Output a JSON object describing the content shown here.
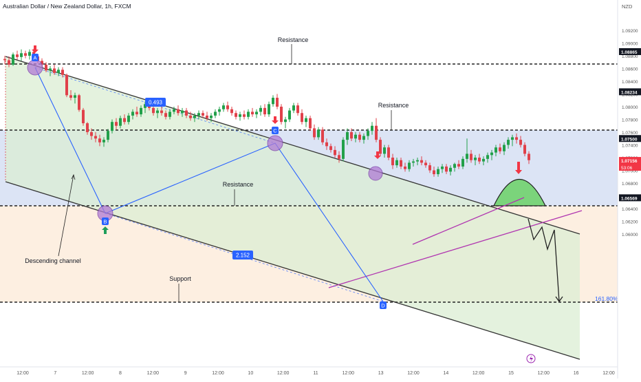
{
  "header": {
    "title": "Australian Dollar / New Zealand Dollar, 1h, FXCM",
    "currency": "NZD"
  },
  "colors": {
    "up": "#22a04a",
    "down": "#e0414a",
    "resistance_zone": "#d6dff3",
    "channel_fill": "#e7f1e2",
    "support_zone": "#fdebd9",
    "blue": "#2962ff",
    "purple_line": "#b035b0",
    "marker_circle": "#b07ad4",
    "green_dome": "#66cc66",
    "arrow_red": "#f23645",
    "arrow_green": "#1e9e5a"
  },
  "chart_data": {
    "type": "candlestick",
    "title": "Australian Dollar / New Zealand Dollar, 1h, FXCM",
    "ylim": [
      1.0597,
      1.095
    ],
    "y_ticks": [
      "1.09200",
      "1.09000",
      "1.08800",
      "1.08600",
      "1.08400",
      "1.08200",
      "1.08000",
      "1.07800",
      "1.07600",
      "1.07400",
      "1.07200",
      "1.07000",
      "1.06800",
      "1.06600",
      "1.06400",
      "1.06200",
      "1.06000"
    ],
    "x_ticks": [
      "12:00",
      "7",
      "12:00",
      "8",
      "12:00",
      "9",
      "12:00",
      "10",
      "12:00",
      "11",
      "12:00",
      "13",
      "12:00",
      "14",
      "12:00",
      "15",
      "12:00",
      "16",
      "12:00"
    ],
    "price_labels": [
      {
        "value": "1.08865",
        "style": "dark"
      },
      {
        "value": "1.08234",
        "style": "dark"
      },
      {
        "value": "1.07500",
        "style": "dark"
      },
      {
        "value": "1.07156",
        "sub": "53:06",
        "style": "red"
      },
      {
        "value": "1.06569",
        "style": "dark"
      }
    ],
    "levels": [
      {
        "name": "Resistance",
        "value": 1.08865
      },
      {
        "name": "Resistance",
        "value": 1.08234
      },
      {
        "name": "Resistance",
        "value": 1.075
      },
      {
        "name": "Support",
        "value": 1.06569
      }
    ],
    "annotations": {
      "resistance_top": "Resistance",
      "resistance_mid": "Resistance",
      "resistance_low": "Resistance",
      "support": "Support",
      "channel": "Descending channel",
      "ratio_1": "0.493",
      "ratio_2": "2.152",
      "fib": "161.80%",
      "point_a": "A",
      "point_b": "B",
      "point_c": "C",
      "point_d": "D"
    },
    "candles": [
      {
        "x": 7,
        "o": 1.0875,
        "h": 1.088,
        "l": 1.0867,
        "c": 1.0873
      },
      {
        "x": 13,
        "o": 1.0873,
        "h": 1.0879,
        "l": 1.0862,
        "c": 1.0866
      },
      {
        "x": 19,
        "o": 1.0866,
        "h": 1.0885,
        "l": 1.0864,
        "c": 1.0882
      },
      {
        "x": 25,
        "o": 1.0882,
        "h": 1.0888,
        "l": 1.0874,
        "c": 1.0878
      },
      {
        "x": 31,
        "o": 1.0878,
        "h": 1.089,
        "l": 1.0872,
        "c": 1.0884
      },
      {
        "x": 37,
        "o": 1.0884,
        "h": 1.0888,
        "l": 1.0876,
        "c": 1.088
      },
      {
        "x": 43,
        "o": 1.088,
        "h": 1.089,
        "l": 1.0874,
        "c": 1.0886
      },
      {
        "x": 49,
        "o": 1.0886,
        "h": 1.0891,
        "l": 1.0876,
        "c": 1.0879
      },
      {
        "x": 55,
        "o": 1.0879,
        "h": 1.0883,
        "l": 1.0868,
        "c": 1.0872
      },
      {
        "x": 61,
        "o": 1.0872,
        "h": 1.0876,
        "l": 1.0862,
        "c": 1.0866
      },
      {
        "x": 67,
        "o": 1.0866,
        "h": 1.087,
        "l": 1.0854,
        "c": 1.0857
      },
      {
        "x": 73,
        "o": 1.0857,
        "h": 1.0864,
        "l": 1.0848,
        "c": 1.086
      },
      {
        "x": 79,
        "o": 1.086,
        "h": 1.0866,
        "l": 1.085,
        "c": 1.0853
      },
      {
        "x": 85,
        "o": 1.0853,
        "h": 1.0862,
        "l": 1.0848,
        "c": 1.0858
      },
      {
        "x": 91,
        "o": 1.0858,
        "h": 1.0862,
        "l": 1.0846,
        "c": 1.085
      },
      {
        "x": 97,
        "o": 1.085,
        "h": 1.0852,
        "l": 1.0815,
        "c": 1.0818
      },
      {
        "x": 103,
        "o": 1.0818,
        "h": 1.0826,
        "l": 1.081,
        "c": 1.0814
      },
      {
        "x": 109,
        "o": 1.0814,
        "h": 1.0822,
        "l": 1.0805,
        "c": 1.0818
      },
      {
        "x": 115,
        "o": 1.0818,
        "h": 1.082,
        "l": 1.0792,
        "c": 1.0795
      },
      {
        "x": 121,
        "o": 1.0795,
        "h": 1.0798,
        "l": 1.077,
        "c": 1.0774
      },
      {
        "x": 127,
        "o": 1.0774,
        "h": 1.0776,
        "l": 1.0756,
        "c": 1.076
      },
      {
        "x": 133,
        "o": 1.076,
        "h": 1.0766,
        "l": 1.0748,
        "c": 1.0754
      },
      {
        "x": 139,
        "o": 1.0754,
        "h": 1.076,
        "l": 1.0744,
        "c": 1.075
      },
      {
        "x": 145,
        "o": 1.075,
        "h": 1.0756,
        "l": 1.0738,
        "c": 1.0744
      },
      {
        "x": 151,
        "o": 1.0744,
        "h": 1.0752,
        "l": 1.0737,
        "c": 1.0748
      },
      {
        "x": 157,
        "o": 1.0748,
        "h": 1.0765,
        "l": 1.0744,
        "c": 1.0762
      },
      {
        "x": 163,
        "o": 1.0762,
        "h": 1.078,
        "l": 1.0758,
        "c": 1.0776
      },
      {
        "x": 169,
        "o": 1.0776,
        "h": 1.0782,
        "l": 1.0764,
        "c": 1.077
      },
      {
        "x": 175,
        "o": 1.077,
        "h": 1.0786,
        "l": 1.0766,
        "c": 1.0782
      },
      {
        "x": 181,
        "o": 1.0782,
        "h": 1.0788,
        "l": 1.0772,
        "c": 1.0776
      },
      {
        "x": 187,
        "o": 1.0776,
        "h": 1.079,
        "l": 1.0772,
        "c": 1.0786
      },
      {
        "x": 193,
        "o": 1.0786,
        "h": 1.0796,
        "l": 1.078,
        "c": 1.0792
      },
      {
        "x": 199,
        "o": 1.0792,
        "h": 1.08,
        "l": 1.0784,
        "c": 1.0788
      },
      {
        "x": 205,
        "o": 1.0788,
        "h": 1.0802,
        "l": 1.0784,
        "c": 1.0798
      },
      {
        "x": 211,
        "o": 1.0798,
        "h": 1.0808,
        "l": 1.079,
        "c": 1.0804
      },
      {
        "x": 217,
        "o": 1.0804,
        "h": 1.081,
        "l": 1.0794,
        "c": 1.0798
      },
      {
        "x": 223,
        "o": 1.0798,
        "h": 1.0802,
        "l": 1.0786,
        "c": 1.079
      },
      {
        "x": 229,
        "o": 1.079,
        "h": 1.0798,
        "l": 1.0782,
        "c": 1.0794
      },
      {
        "x": 235,
        "o": 1.0794,
        "h": 1.08,
        "l": 1.0786,
        "c": 1.079
      },
      {
        "x": 241,
        "o": 1.079,
        "h": 1.0794,
        "l": 1.078,
        "c": 1.0784
      },
      {
        "x": 247,
        "o": 1.0784,
        "h": 1.0796,
        "l": 1.078,
        "c": 1.0792
      },
      {
        "x": 253,
        "o": 1.0792,
        "h": 1.08,
        "l": 1.0788,
        "c": 1.0796
      },
      {
        "x": 259,
        "o": 1.0796,
        "h": 1.0802,
        "l": 1.0786,
        "c": 1.079
      },
      {
        "x": 265,
        "o": 1.079,
        "h": 1.0798,
        "l": 1.0784,
        "c": 1.0794
      },
      {
        "x": 271,
        "o": 1.0794,
        "h": 1.0798,
        "l": 1.0782,
        "c": 1.0786
      },
      {
        "x": 277,
        "o": 1.0786,
        "h": 1.0792,
        "l": 1.0778,
        "c": 1.0782
      },
      {
        "x": 283,
        "o": 1.0782,
        "h": 1.079,
        "l": 1.0776,
        "c": 1.0786
      },
      {
        "x": 289,
        "o": 1.0786,
        "h": 1.0794,
        "l": 1.078,
        "c": 1.079
      },
      {
        "x": 295,
        "o": 1.079,
        "h": 1.0794,
        "l": 1.0782,
        "c": 1.0786
      },
      {
        "x": 301,
        "o": 1.0786,
        "h": 1.0792,
        "l": 1.0778,
        "c": 1.0782
      },
      {
        "x": 307,
        "o": 1.0782,
        "h": 1.079,
        "l": 1.0776,
        "c": 1.0786
      },
      {
        "x": 313,
        "o": 1.0786,
        "h": 1.0796,
        "l": 1.0782,
        "c": 1.0792
      },
      {
        "x": 319,
        "o": 1.0792,
        "h": 1.08,
        "l": 1.0786,
        "c": 1.0796
      },
      {
        "x": 325,
        "o": 1.0796,
        "h": 1.0806,
        "l": 1.0792,
        "c": 1.0802
      },
      {
        "x": 331,
        "o": 1.0802,
        "h": 1.0808,
        "l": 1.0792,
        "c": 1.0796
      },
      {
        "x": 337,
        "o": 1.0796,
        "h": 1.08,
        "l": 1.0786,
        "c": 1.079
      },
      {
        "x": 343,
        "o": 1.079,
        "h": 1.0794,
        "l": 1.078,
        "c": 1.0784
      },
      {
        "x": 349,
        "o": 1.0784,
        "h": 1.0792,
        "l": 1.0778,
        "c": 1.0788
      },
      {
        "x": 355,
        "o": 1.0788,
        "h": 1.0794,
        "l": 1.078,
        "c": 1.0784
      },
      {
        "x": 361,
        "o": 1.0784,
        "h": 1.0796,
        "l": 1.078,
        "c": 1.0792
      },
      {
        "x": 367,
        "o": 1.0792,
        "h": 1.0798,
        "l": 1.0784,
        "c": 1.0788
      },
      {
        "x": 373,
        "o": 1.0788,
        "h": 1.0796,
        "l": 1.0782,
        "c": 1.0792
      },
      {
        "x": 379,
        "o": 1.0792,
        "h": 1.0802,
        "l": 1.0786,
        "c": 1.0798
      },
      {
        "x": 385,
        "o": 1.0798,
        "h": 1.0804,
        "l": 1.0784,
        "c": 1.0788
      },
      {
        "x": 391,
        "o": 1.0788,
        "h": 1.0808,
        "l": 1.0784,
        "c": 1.0804
      },
      {
        "x": 397,
        "o": 1.0804,
        "h": 1.0818,
        "l": 1.08,
        "c": 1.0814
      },
      {
        "x": 403,
        "o": 1.0814,
        "h": 1.082,
        "l": 1.0796,
        "c": 1.08
      },
      {
        "x": 409,
        "o": 1.08,
        "h": 1.0804,
        "l": 1.0772,
        "c": 1.0776
      },
      {
        "x": 415,
        "o": 1.0776,
        "h": 1.0784,
        "l": 1.0766,
        "c": 1.078
      },
      {
        "x": 421,
        "o": 1.078,
        "h": 1.0798,
        "l": 1.0776,
        "c": 1.0794
      },
      {
        "x": 427,
        "o": 1.0794,
        "h": 1.0806,
        "l": 1.079,
        "c": 1.0802
      },
      {
        "x": 433,
        "o": 1.0802,
        "h": 1.0806,
        "l": 1.0786,
        "c": 1.079
      },
      {
        "x": 439,
        "o": 1.079,
        "h": 1.0796,
        "l": 1.0772,
        "c": 1.0776
      },
      {
        "x": 445,
        "o": 1.0776,
        "h": 1.0786,
        "l": 1.0768,
        "c": 1.0782
      },
      {
        "x": 451,
        "o": 1.0782,
        "h": 1.0786,
        "l": 1.0762,
        "c": 1.0766
      },
      {
        "x": 457,
        "o": 1.0766,
        "h": 1.0772,
        "l": 1.0748,
        "c": 1.0752
      },
      {
        "x": 463,
        "o": 1.0752,
        "h": 1.0768,
        "l": 1.0748,
        "c": 1.0764
      },
      {
        "x": 469,
        "o": 1.0764,
        "h": 1.0768,
        "l": 1.074,
        "c": 1.0744
      },
      {
        "x": 475,
        "o": 1.0744,
        "h": 1.075,
        "l": 1.0732,
        "c": 1.0738
      },
      {
        "x": 481,
        "o": 1.0738,
        "h": 1.0742,
        "l": 1.0728,
        "c": 1.0732
      },
      {
        "x": 487,
        "o": 1.0732,
        "h": 1.0738,
        "l": 1.072,
        "c": 1.0724
      },
      {
        "x": 493,
        "o": 1.0724,
        "h": 1.073,
        "l": 1.0712,
        "c": 1.0718
      },
      {
        "x": 499,
        "o": 1.0718,
        "h": 1.0752,
        "l": 1.0714,
        "c": 1.0748
      },
      {
        "x": 505,
        "o": 1.0748,
        "h": 1.0766,
        "l": 1.074,
        "c": 1.076
      },
      {
        "x": 511,
        "o": 1.076,
        "h": 1.0766,
        "l": 1.0746,
        "c": 1.075
      },
      {
        "x": 517,
        "o": 1.075,
        "h": 1.076,
        "l": 1.0744,
        "c": 1.0756
      },
      {
        "x": 523,
        "o": 1.0756,
        "h": 1.076,
        "l": 1.0744,
        "c": 1.0748
      },
      {
        "x": 529,
        "o": 1.0748,
        "h": 1.0758,
        "l": 1.0742,
        "c": 1.0754
      },
      {
        "x": 535,
        "o": 1.0754,
        "h": 1.0766,
        "l": 1.0748,
        "c": 1.0762
      },
      {
        "x": 541,
        "o": 1.0762,
        "h": 1.0776,
        "l": 1.0756,
        "c": 1.077
      },
      {
        "x": 547,
        "o": 1.077,
        "h": 1.0782,
        "l": 1.0744,
        "c": 1.0748
      },
      {
        "x": 553,
        "o": 1.0748,
        "h": 1.0752,
        "l": 1.0722,
        "c": 1.0726
      },
      {
        "x": 559,
        "o": 1.0726,
        "h": 1.074,
        "l": 1.072,
        "c": 1.0736
      },
      {
        "x": 565,
        "o": 1.0736,
        "h": 1.074,
        "l": 1.0716,
        "c": 1.072
      },
      {
        "x": 571,
        "o": 1.072,
        "h": 1.0726,
        "l": 1.0702,
        "c": 1.0708
      },
      {
        "x": 577,
        "o": 1.0708,
        "h": 1.072,
        "l": 1.0704,
        "c": 1.0716
      },
      {
        "x": 583,
        "o": 1.0716,
        "h": 1.072,
        "l": 1.0702,
        "c": 1.0706
      },
      {
        "x": 589,
        "o": 1.0706,
        "h": 1.0712,
        "l": 1.0698,
        "c": 1.0702
      },
      {
        "x": 595,
        "o": 1.0702,
        "h": 1.0716,
        "l": 1.0698,
        "c": 1.0712
      },
      {
        "x": 601,
        "o": 1.0712,
        "h": 1.0718,
        "l": 1.0706,
        "c": 1.0714
      },
      {
        "x": 607,
        "o": 1.0714,
        "h": 1.072,
        "l": 1.0708,
        "c": 1.0716
      },
      {
        "x": 613,
        "o": 1.0716,
        "h": 1.0722,
        "l": 1.0708,
        "c": 1.0712
      },
      {
        "x": 619,
        "o": 1.0712,
        "h": 1.0716,
        "l": 1.0704,
        "c": 1.0708
      },
      {
        "x": 625,
        "o": 1.0708,
        "h": 1.0712,
        "l": 1.0696,
        "c": 1.07
      },
      {
        "x": 631,
        "o": 1.07,
        "h": 1.0706,
        "l": 1.069,
        "c": 1.0694
      },
      {
        "x": 637,
        "o": 1.0694,
        "h": 1.0706,
        "l": 1.069,
        "c": 1.0702
      },
      {
        "x": 643,
        "o": 1.0702,
        "h": 1.071,
        "l": 1.0696,
        "c": 1.0706
      },
      {
        "x": 649,
        "o": 1.0706,
        "h": 1.071,
        "l": 1.0694,
        "c": 1.0698
      },
      {
        "x": 655,
        "o": 1.0698,
        "h": 1.0708,
        "l": 1.0692,
        "c": 1.0704
      },
      {
        "x": 661,
        "o": 1.0704,
        "h": 1.0712,
        "l": 1.0698,
        "c": 1.071
      },
      {
        "x": 667,
        "o": 1.071,
        "h": 1.0716,
        "l": 1.0702,
        "c": 1.0706
      },
      {
        "x": 673,
        "o": 1.0706,
        "h": 1.0722,
        "l": 1.0702,
        "c": 1.0718
      },
      {
        "x": 679,
        "o": 1.0718,
        "h": 1.075,
        "l": 1.0712,
        "c": 1.0726
      },
      {
        "x": 685,
        "o": 1.0726,
        "h": 1.0732,
        "l": 1.0712,
        "c": 1.0716
      },
      {
        "x": 691,
        "o": 1.0716,
        "h": 1.0724,
        "l": 1.0708,
        "c": 1.072
      },
      {
        "x": 697,
        "o": 1.072,
        "h": 1.0726,
        "l": 1.071,
        "c": 1.0714
      },
      {
        "x": 703,
        "o": 1.0714,
        "h": 1.0722,
        "l": 1.0708,
        "c": 1.0718
      },
      {
        "x": 709,
        "o": 1.0718,
        "h": 1.0728,
        "l": 1.0712,
        "c": 1.0724
      },
      {
        "x": 715,
        "o": 1.0724,
        "h": 1.0732,
        "l": 1.0716,
        "c": 1.0728
      },
      {
        "x": 721,
        "o": 1.0728,
        "h": 1.074,
        "l": 1.0722,
        "c": 1.0736
      },
      {
        "x": 727,
        "o": 1.0736,
        "h": 1.0742,
        "l": 1.0726,
        "c": 1.073
      },
      {
        "x": 733,
        "o": 1.073,
        "h": 1.0744,
        "l": 1.0724,
        "c": 1.074
      },
      {
        "x": 739,
        "o": 1.074,
        "h": 1.0752,
        "l": 1.0734,
        "c": 1.0748
      },
      {
        "x": 745,
        "o": 1.0748,
        "h": 1.0756,
        "l": 1.0738,
        "c": 1.0752
      },
      {
        "x": 751,
        "o": 1.0752,
        "h": 1.0758,
        "l": 1.0742,
        "c": 1.0748
      },
      {
        "x": 757,
        "o": 1.0748,
        "h": 1.0754,
        "l": 1.0736,
        "c": 1.074
      },
      {
        "x": 763,
        "o": 1.074,
        "h": 1.0744,
        "l": 1.0722,
        "c": 1.0726
      },
      {
        "x": 769,
        "o": 1.0726,
        "h": 1.073,
        "l": 1.071,
        "c": 1.0716
      }
    ]
  }
}
